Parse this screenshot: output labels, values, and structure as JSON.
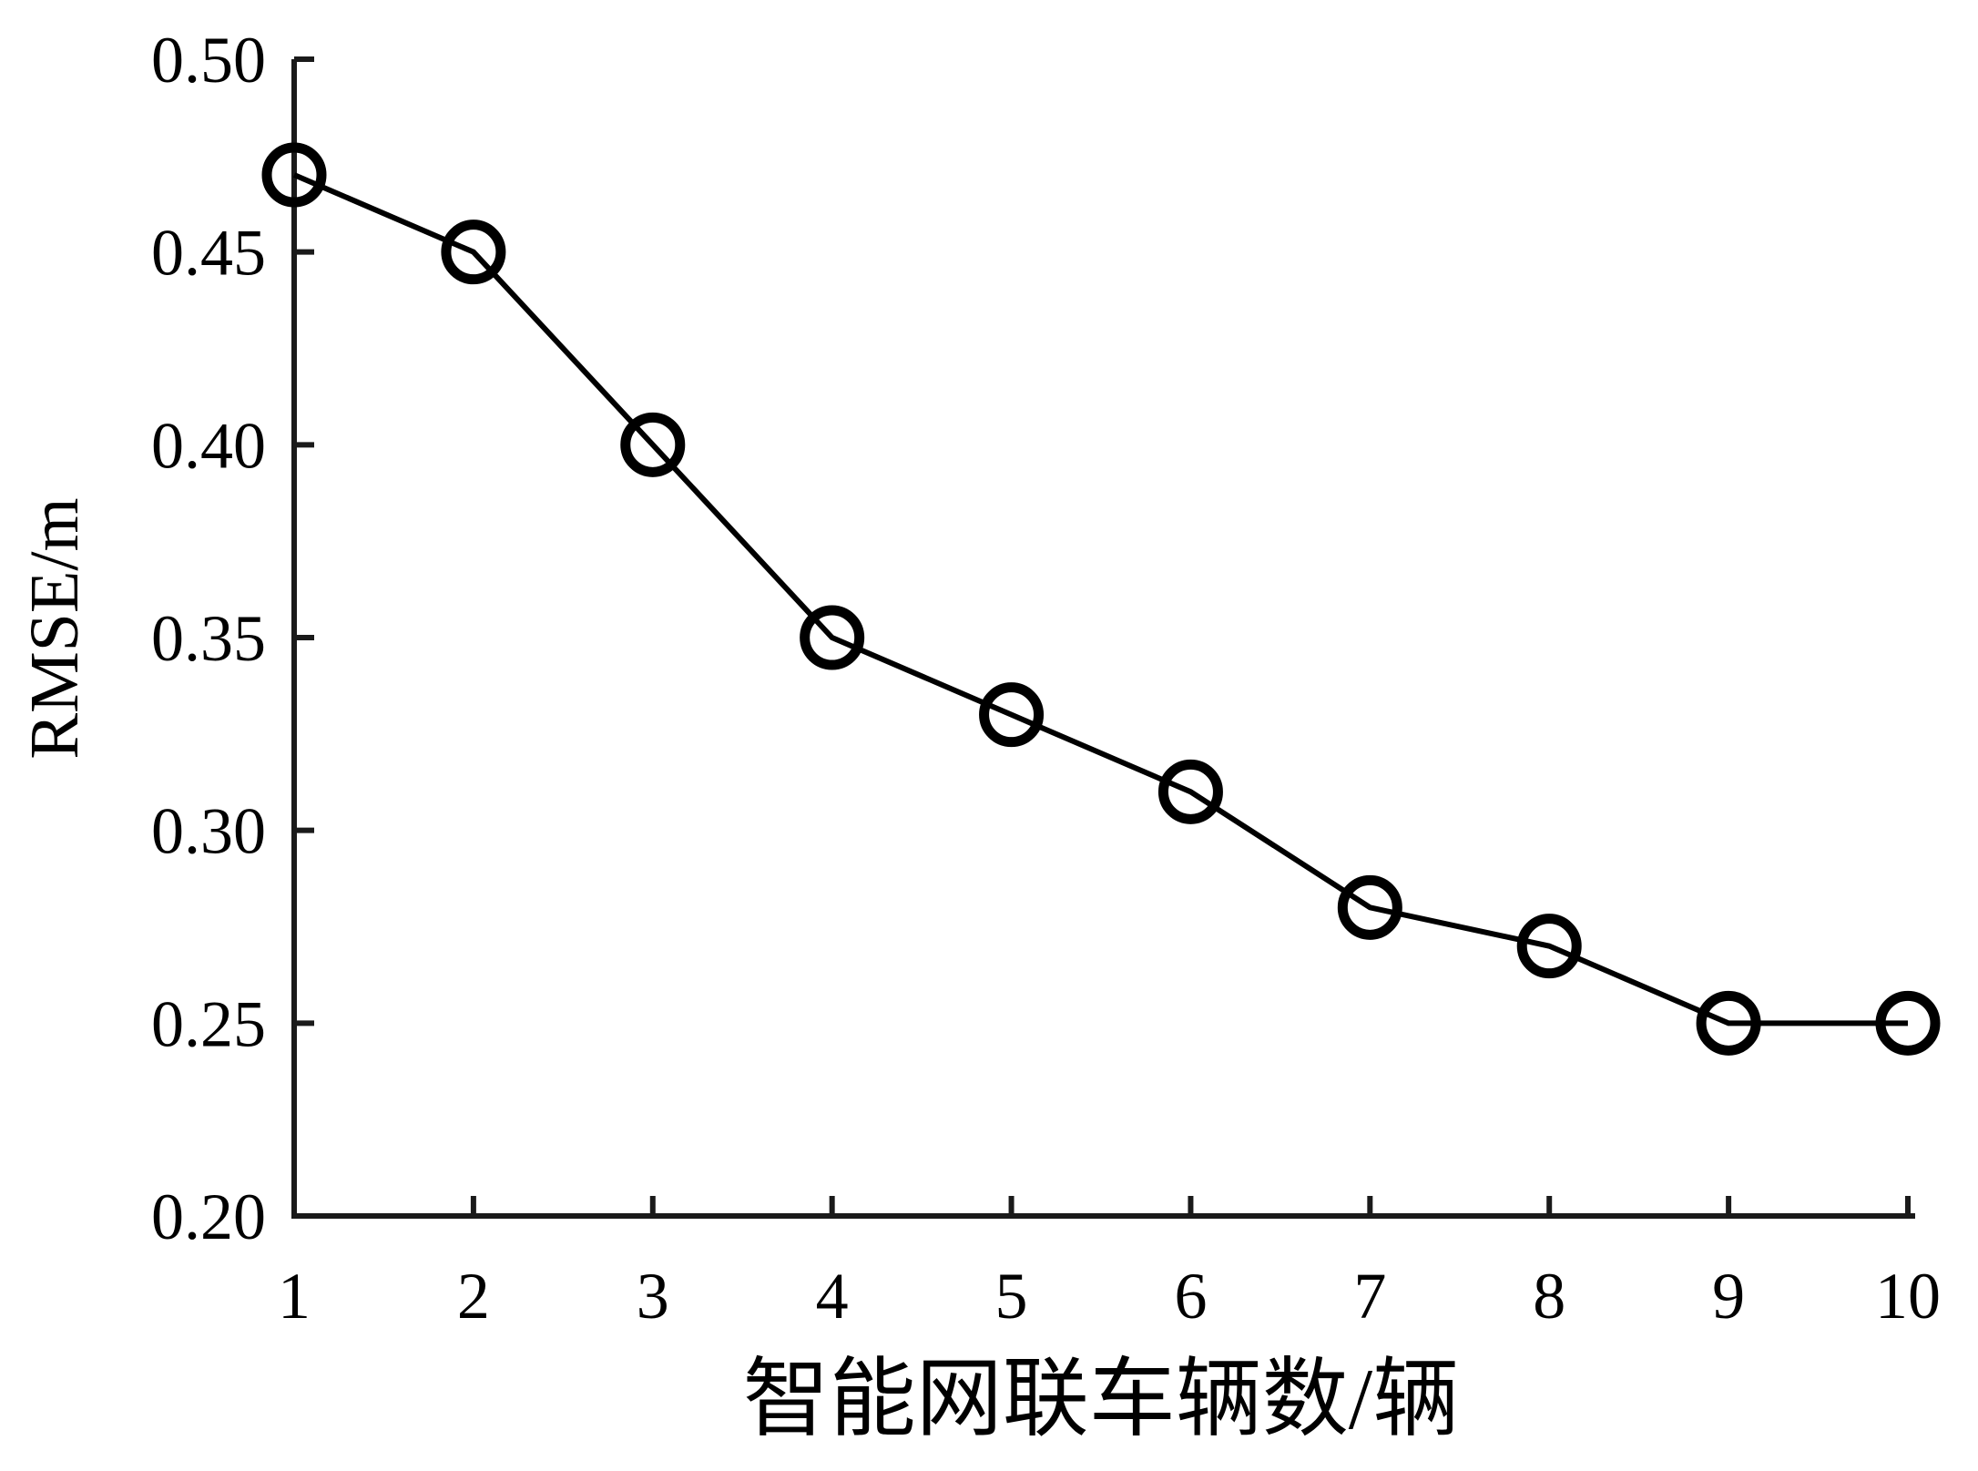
{
  "chart_data": {
    "type": "line",
    "title": "",
    "xlabel": "智能网联车辆数/辆",
    "ylabel": "RMSE/m",
    "series": [
      {
        "name": "RMSE",
        "x": [
          1,
          2,
          3,
          4,
          5,
          6,
          7,
          8,
          9,
          10
        ],
        "values": [
          0.47,
          0.45,
          0.4,
          0.35,
          0.33,
          0.31,
          0.28,
          0.27,
          0.25,
          0.25
        ]
      }
    ],
    "xlim": [
      1,
      10
    ],
    "ylim": [
      0.2,
      0.5
    ],
    "x_ticks": [
      1,
      2,
      3,
      4,
      5,
      6,
      7,
      8,
      9,
      10
    ],
    "x_tick_labels": [
      "1",
      "2",
      "3",
      "4",
      "5",
      "6",
      "7",
      "8",
      "9",
      "10"
    ],
    "y_ticks": [
      0.2,
      0.25,
      0.3,
      0.35,
      0.4,
      0.45,
      0.5
    ],
    "y_tick_labels": [
      "0.20",
      "0.25",
      "0.30",
      "0.35",
      "0.40",
      "0.45",
      "0.50"
    ],
    "grid": false,
    "legend_position": "none",
    "marker_style": "open-circle",
    "line_color": "#000000",
    "marker_color": "#000000",
    "axis_color": "#1a1a1a",
    "background_color": "#ffffff",
    "tick_direction": "in"
  }
}
